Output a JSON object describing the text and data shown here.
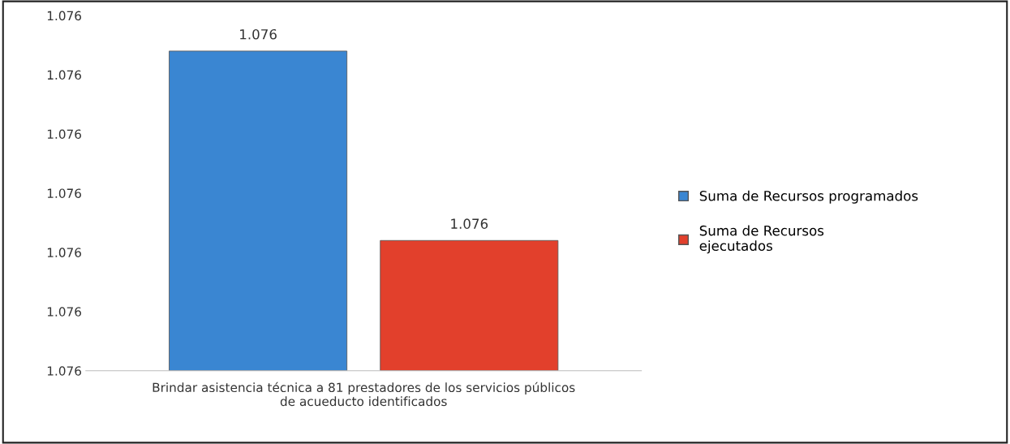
{
  "chart_data": {
    "type": "bar",
    "categories": [
      "Brindar asistencia técnica a 81 prestadores de los servicios públicos\nde acueducto identificados"
    ],
    "series": [
      {
        "name": "Suma de Recursos programados",
        "color": "#3a86d2",
        "values": [
          1076.14
        ],
        "value_labels": [
          "1.076"
        ]
      },
      {
        "name": "Suma de Recursos\nejecutados",
        "color": "#e2402c",
        "values": [
          1075.82
        ],
        "value_labels": [
          "1.076"
        ]
      }
    ],
    "ylim": [
      1075.6,
      1076.2
    ],
    "yticks": [
      {
        "value": 1075.6,
        "label": "1.076"
      },
      {
        "value": 1075.7,
        "label": "1.076"
      },
      {
        "value": 1075.8,
        "label": "1.076"
      },
      {
        "value": 1075.9,
        "label": "1.076"
      },
      {
        "value": 1076.0,
        "label": "1.076"
      },
      {
        "value": 1076.1,
        "label": "1.076"
      },
      {
        "value": 1076.2,
        "label": "1.076"
      }
    ],
    "grid": false,
    "legend": "right"
  }
}
